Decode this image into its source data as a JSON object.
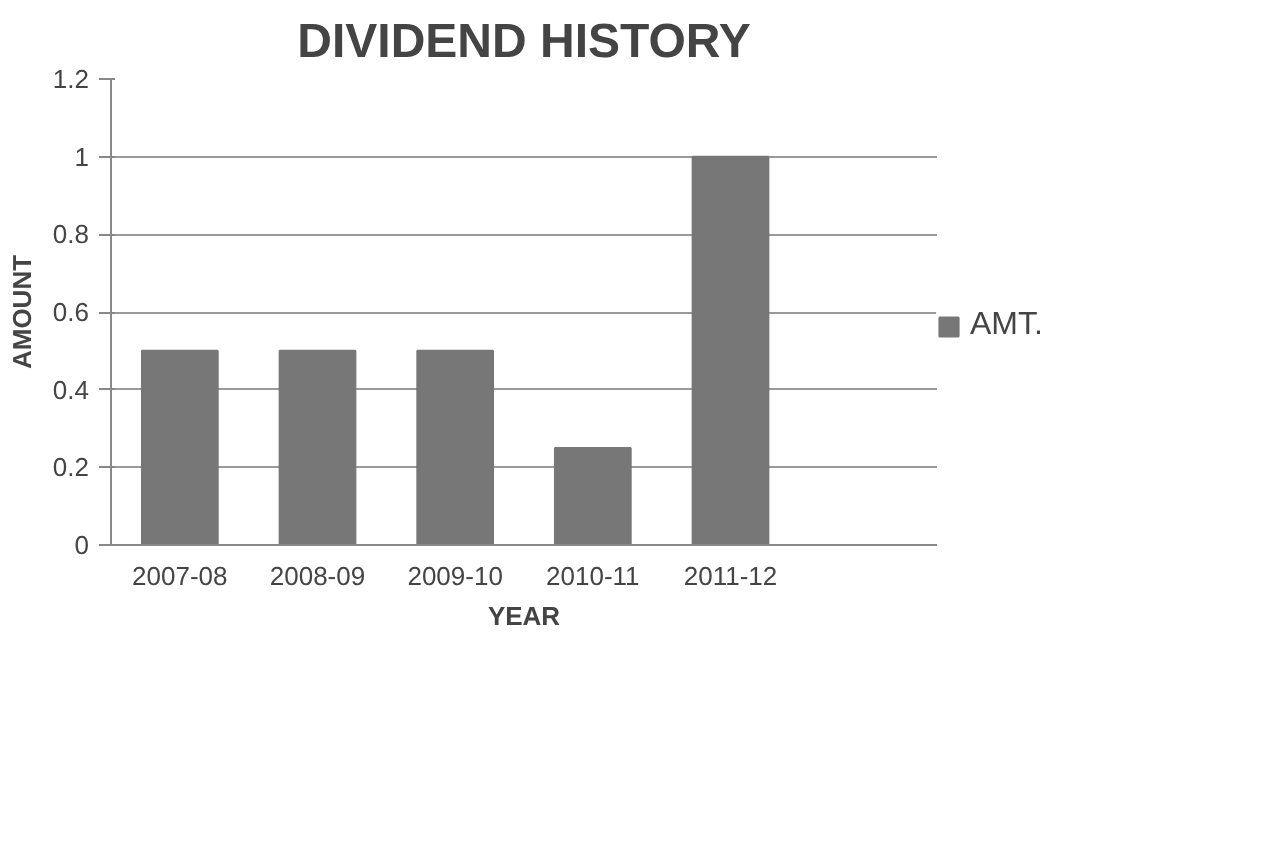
{
  "chart_data": {
    "type": "bar",
    "title": "DIVIDEND HISTORY",
    "xlabel": "YEAR",
    "ylabel": "AMOUNT",
    "categories": [
      "2007-08",
      "2008-09",
      "2009-10",
      "2010-11",
      "2011-12",
      null
    ],
    "series": [
      {
        "name": "AMT.",
        "color": "#777777",
        "values": [
          0.5,
          0.5,
          0.5,
          0.25,
          1,
          null
        ]
      }
    ],
    "ylim": [
      0,
      1.2
    ],
    "yticks": [
      0,
      0.2,
      0.4,
      0.6,
      0.8,
      1,
      1.2
    ],
    "grid": "y",
    "legend": "right"
  }
}
